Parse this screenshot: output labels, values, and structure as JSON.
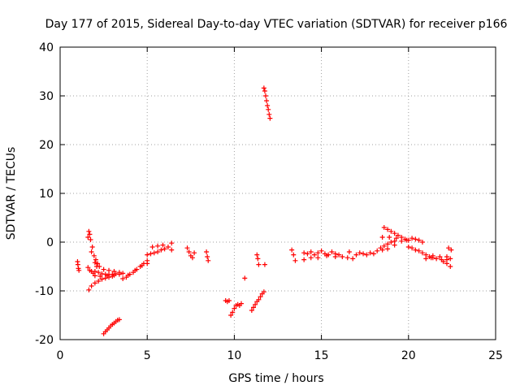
{
  "chart_data": {
    "type": "scatter",
    "title": "Day 177 of 2015, Sidereal Day-to-day VTEC variation (SDTVAR) for receiver p166",
    "xlabel": "GPS time / hours",
    "ylabel": "SDTVAR / TECUs",
    "xlim": [
      0,
      25
    ],
    "ylim": [
      -20,
      40
    ],
    "xticks": [
      0,
      5,
      10,
      15,
      20,
      25
    ],
    "yticks": [
      -20,
      -10,
      0,
      10,
      20,
      30,
      40
    ],
    "grid": true,
    "marker": "+",
    "color": "#ff0000",
    "points": [
      [
        1.0,
        -4.0
      ],
      [
        1.02,
        -4.6
      ],
      [
        1.05,
        -5.4
      ],
      [
        1.08,
        -5.8
      ],
      [
        1.6,
        1.0
      ],
      [
        1.8,
        -2.0
      ],
      [
        2.0,
        -4.2
      ],
      [
        2.1,
        -5.0
      ],
      [
        1.65,
        2.2
      ],
      [
        1.7,
        1.6
      ],
      [
        1.75,
        0.5
      ],
      [
        1.85,
        -1.0
      ],
      [
        1.95,
        -2.8
      ],
      [
        2.05,
        -3.6
      ],
      [
        2.15,
        -4.4
      ],
      [
        2.25,
        -5.0
      ],
      [
        1.6,
        -5.2
      ],
      [
        1.7,
        -5.8
      ],
      [
        1.8,
        -6.0
      ],
      [
        1.9,
        -6.4
      ],
      [
        2.0,
        -6.0
      ],
      [
        2.2,
        -6.2
      ],
      [
        2.4,
        -6.5
      ],
      [
        2.6,
        -6.6
      ],
      [
        2.8,
        -6.6
      ],
      [
        3.0,
        -6.6
      ],
      [
        3.2,
        -6.5
      ],
      [
        1.65,
        -9.8
      ],
      [
        1.8,
        -9.0
      ],
      [
        2.0,
        -8.4
      ],
      [
        2.2,
        -8.0
      ],
      [
        2.4,
        -7.6
      ],
      [
        2.6,
        -7.4
      ],
      [
        2.8,
        -7.2
      ],
      [
        3.0,
        -7.0
      ],
      [
        2.0,
        -6.9
      ],
      [
        2.3,
        -7.0
      ],
      [
        2.7,
        -6.9
      ],
      [
        3.1,
        -6.8
      ],
      [
        2.5,
        -5.6
      ],
      [
        2.8,
        -5.8
      ],
      [
        3.1,
        -6.0
      ],
      [
        3.4,
        -6.2
      ],
      [
        2.5,
        -18.8
      ],
      [
        2.6,
        -18.4
      ],
      [
        2.7,
        -18.0
      ],
      [
        2.8,
        -17.6
      ],
      [
        2.9,
        -17.2
      ],
      [
        3.0,
        -16.9
      ],
      [
        3.1,
        -16.6
      ],
      [
        3.2,
        -16.3
      ],
      [
        3.3,
        -16.0
      ],
      [
        3.4,
        -15.9
      ],
      [
        3.4,
        -6.6
      ],
      [
        3.6,
        -7.5
      ],
      [
        3.8,
        -7.2
      ],
      [
        4.0,
        -6.6
      ],
      [
        4.2,
        -6.2
      ],
      [
        4.4,
        -5.6
      ],
      [
        4.6,
        -5.0
      ],
      [
        4.8,
        -4.4
      ],
      [
        5.0,
        -3.8
      ],
      [
        3.6,
        -6.4
      ],
      [
        3.9,
        -6.8
      ],
      [
        4.3,
        -5.8
      ],
      [
        4.7,
        -4.8
      ],
      [
        5.0,
        -4.4
      ],
      [
        5.0,
        -2.6
      ],
      [
        5.2,
        -2.4
      ],
      [
        5.4,
        -2.2
      ],
      [
        5.6,
        -2.0
      ],
      [
        5.8,
        -1.6
      ],
      [
        6.0,
        -1.4
      ],
      [
        6.2,
        -1.0
      ],
      [
        5.3,
        -1.0
      ],
      [
        5.6,
        -0.8
      ],
      [
        5.9,
        -0.6
      ],
      [
        6.4,
        -0.2
      ],
      [
        6.4,
        -1.6
      ],
      [
        7.3,
        -1.2
      ],
      [
        7.4,
        -2.0
      ],
      [
        7.5,
        -2.8
      ],
      [
        7.6,
        -3.2
      ],
      [
        7.7,
        -2.2
      ],
      [
        8.4,
        -2.0
      ],
      [
        8.45,
        -3.0
      ],
      [
        8.5,
        -3.8
      ],
      [
        9.5,
        -12.0
      ],
      [
        9.6,
        -12.2
      ],
      [
        9.7,
        -12.0
      ],
      [
        9.8,
        -15.0
      ],
      [
        9.9,
        -14.4
      ],
      [
        10.0,
        -13.6
      ],
      [
        10.1,
        -13.0
      ],
      [
        10.2,
        -12.8
      ],
      [
        10.3,
        -13.0
      ],
      [
        10.4,
        -12.6
      ],
      [
        10.6,
        -7.4
      ],
      [
        11.0,
        -14.0
      ],
      [
        11.1,
        -13.4
      ],
      [
        11.2,
        -12.8
      ],
      [
        11.3,
        -12.2
      ],
      [
        11.4,
        -11.8
      ],
      [
        11.5,
        -11.2
      ],
      [
        11.6,
        -10.6
      ],
      [
        11.7,
        -10.2
      ],
      [
        11.3,
        -2.6
      ],
      [
        11.35,
        -3.4
      ],
      [
        11.4,
        -4.6
      ],
      [
        11.75,
        -4.6
      ],
      [
        11.7,
        31.6
      ],
      [
        11.75,
        31.0
      ],
      [
        11.8,
        30.0
      ],
      [
        11.85,
        29.0
      ],
      [
        11.9,
        28.0
      ],
      [
        11.95,
        27.2
      ],
      [
        12.0,
        26.2
      ],
      [
        12.05,
        25.4
      ],
      [
        13.3,
        -1.6
      ],
      [
        13.4,
        -2.6
      ],
      [
        13.5,
        -3.8
      ],
      [
        14.0,
        -2.2
      ],
      [
        14.2,
        -2.4
      ],
      [
        14.4,
        -2.0
      ],
      [
        14.6,
        -2.6
      ],
      [
        14.8,
        -2.2
      ],
      [
        15.0,
        -1.8
      ],
      [
        15.2,
        -2.4
      ],
      [
        15.4,
        -2.6
      ],
      [
        15.6,
        -2.0
      ],
      [
        15.8,
        -2.4
      ],
      [
        16.0,
        -2.6
      ],
      [
        14.0,
        -3.6
      ],
      [
        14.4,
        -3.2
      ],
      [
        14.8,
        -3.2
      ],
      [
        15.3,
        -2.8
      ],
      [
        15.8,
        -3.0
      ],
      [
        16.2,
        -3.0
      ],
      [
        16.5,
        -3.2
      ],
      [
        16.6,
        -2.0
      ],
      [
        16.8,
        -3.4
      ],
      [
        17.0,
        -2.6
      ],
      [
        17.2,
        -2.2
      ],
      [
        17.4,
        -2.4
      ],
      [
        17.6,
        -2.6
      ],
      [
        17.8,
        -2.2
      ],
      [
        18.0,
        -2.4
      ],
      [
        18.2,
        -1.8
      ],
      [
        18.4,
        -1.2
      ],
      [
        18.6,
        -0.8
      ],
      [
        18.8,
        -0.4
      ],
      [
        19.0,
        0.0
      ],
      [
        19.2,
        0.2
      ],
      [
        18.5,
        -1.6
      ],
      [
        18.8,
        -1.4
      ],
      [
        19.2,
        -0.6
      ],
      [
        19.6,
        0.2
      ],
      [
        19.9,
        0.4
      ],
      [
        18.6,
        3.0
      ],
      [
        18.8,
        2.6
      ],
      [
        19.0,
        2.2
      ],
      [
        19.2,
        1.8
      ],
      [
        19.4,
        1.4
      ],
      [
        19.6,
        1.0
      ],
      [
        19.8,
        0.6
      ],
      [
        20.0,
        0.4
      ],
      [
        18.5,
        1.0
      ],
      [
        18.9,
        1.0
      ],
      [
        19.3,
        0.8
      ],
      [
        20.2,
        0.8
      ],
      [
        20.4,
        0.6
      ],
      [
        20.6,
        0.4
      ],
      [
        20.8,
        0.0
      ],
      [
        20.0,
        -1.0
      ],
      [
        20.2,
        -1.2
      ],
      [
        20.4,
        -1.6
      ],
      [
        20.6,
        -1.8
      ],
      [
        20.8,
        -2.2
      ],
      [
        21.0,
        -2.6
      ],
      [
        21.2,
        -3.0
      ],
      [
        21.4,
        -3.2
      ],
      [
        21.0,
        -3.4
      ],
      [
        21.3,
        -3.2
      ],
      [
        21.6,
        -3.4
      ],
      [
        21.9,
        -3.6
      ],
      [
        22.2,
        -3.6
      ],
      [
        22.4,
        -3.4
      ],
      [
        21.4,
        -2.8
      ],
      [
        21.8,
        -3.0
      ],
      [
        22.2,
        -3.0
      ],
      [
        22.0,
        -4.0
      ],
      [
        22.2,
        -4.4
      ],
      [
        22.4,
        -5.0
      ],
      [
        22.3,
        -1.2
      ],
      [
        22.45,
        -1.6
      ]
    ]
  }
}
